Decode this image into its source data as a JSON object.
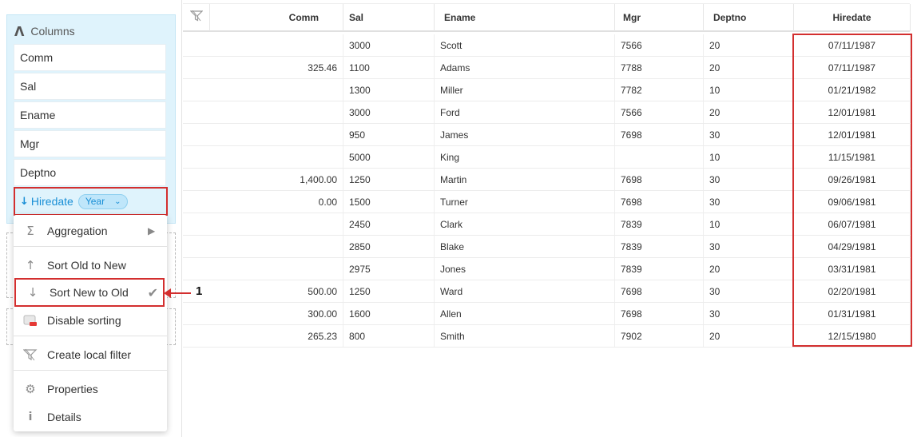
{
  "columns_panel": {
    "header": "Columns",
    "items": [
      "Comm",
      "Sal",
      "Ename",
      "Mgr",
      "Deptno"
    ],
    "active_item": {
      "label": "Hiredate",
      "chip": "Year"
    }
  },
  "menu": {
    "aggregation": "Aggregation",
    "sort_old_to_new": "Sort Old to New",
    "sort_new_to_old": "Sort New to Old",
    "disable_sorting": "Disable sorting",
    "create_local_filter": "Create local filter",
    "properties": "Properties",
    "details": "Details"
  },
  "callout": "1",
  "grid": {
    "headers": [
      "Comm",
      "Sal",
      "Ename",
      "Mgr",
      "Deptno",
      "Hiredate"
    ],
    "rows": [
      {
        "comm": "",
        "sal": "3000",
        "ename": "Scott",
        "mgr": "7566",
        "deptno": "20",
        "hiredate": "07/11/1987"
      },
      {
        "comm": "325.46",
        "sal": "1100",
        "ename": "Adams",
        "mgr": "7788",
        "deptno": "20",
        "hiredate": "07/11/1987"
      },
      {
        "comm": "",
        "sal": "1300",
        "ename": "Miller",
        "mgr": "7782",
        "deptno": "10",
        "hiredate": "01/21/1982"
      },
      {
        "comm": "",
        "sal": "3000",
        "ename": "Ford",
        "mgr": "7566",
        "deptno": "20",
        "hiredate": "12/01/1981"
      },
      {
        "comm": "",
        "sal": "950",
        "ename": "James",
        "mgr": "7698",
        "deptno": "30",
        "hiredate": "12/01/1981"
      },
      {
        "comm": "",
        "sal": "5000",
        "ename": "King",
        "mgr": "",
        "deptno": "10",
        "hiredate": "11/15/1981"
      },
      {
        "comm": "1,400.00",
        "sal": "1250",
        "ename": "Martin",
        "mgr": "7698",
        "deptno": "30",
        "hiredate": "09/26/1981"
      },
      {
        "comm": "0.00",
        "sal": "1500",
        "ename": "Turner",
        "mgr": "7698",
        "deptno": "30",
        "hiredate": "09/06/1981"
      },
      {
        "comm": "",
        "sal": "2450",
        "ename": "Clark",
        "mgr": "7839",
        "deptno": "10",
        "hiredate": "06/07/1981"
      },
      {
        "comm": "",
        "sal": "2850",
        "ename": "Blake",
        "mgr": "7839",
        "deptno": "30",
        "hiredate": "04/29/1981"
      },
      {
        "comm": "",
        "sal": "2975",
        "ename": "Jones",
        "mgr": "7839",
        "deptno": "20",
        "hiredate": "03/31/1981"
      },
      {
        "comm": "500.00",
        "sal": "1250",
        "ename": "Ward",
        "mgr": "7698",
        "deptno": "30",
        "hiredate": "02/20/1981"
      },
      {
        "comm": "300.00",
        "sal": "1600",
        "ename": "Allen",
        "mgr": "7698",
        "deptno": "30",
        "hiredate": "01/31/1981"
      },
      {
        "comm": "265.23",
        "sal": "800",
        "ename": "Smith",
        "mgr": "7902",
        "deptno": "20",
        "hiredate": "12/15/1980"
      }
    ]
  },
  "colors": {
    "accent": "#1a8fd6",
    "highlight": "#d32f2f",
    "panel_bg": "#dff3fc"
  }
}
